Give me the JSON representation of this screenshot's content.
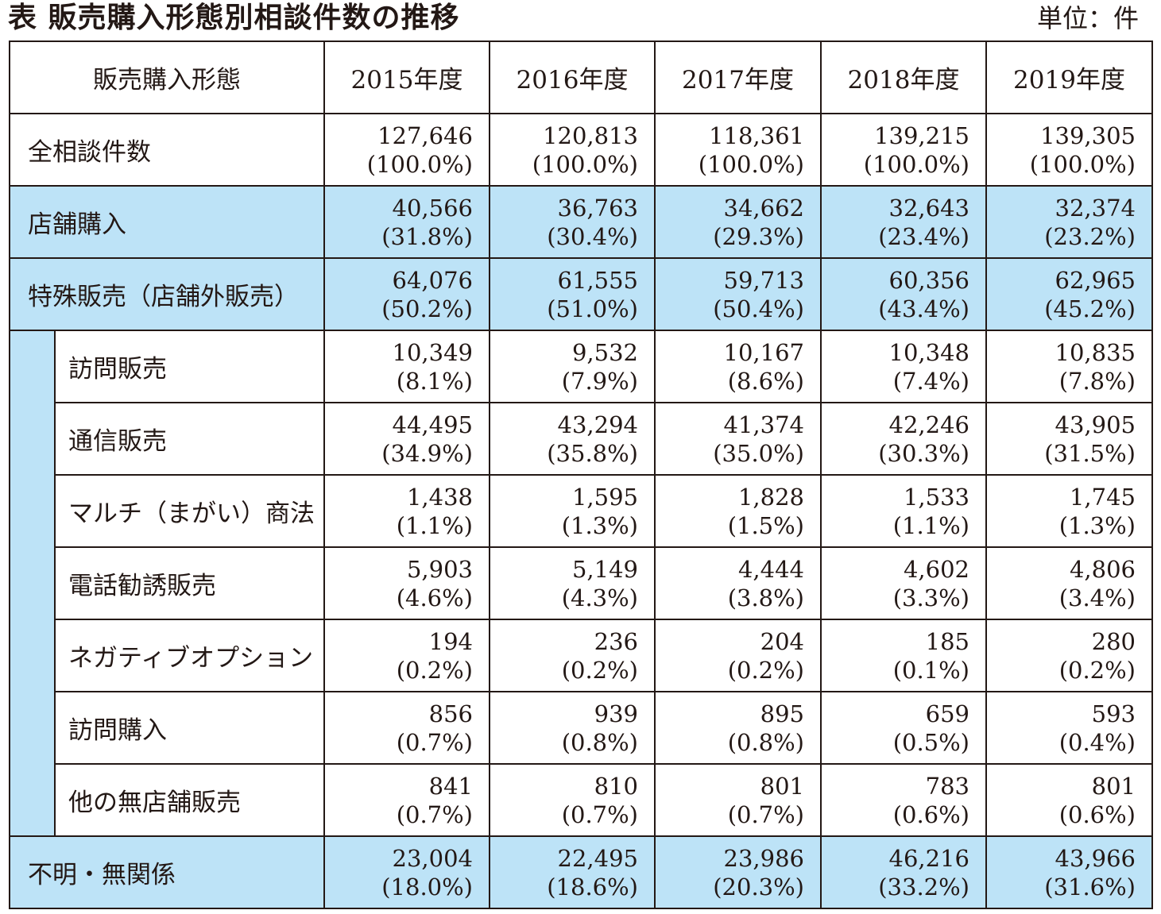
{
  "title": "表 販売購入形態別相談件数の推移",
  "unit": "単位：件",
  "colors": {
    "highlight": "#bde3f7",
    "border": "#231815"
  },
  "table": {
    "header_label": "販売購入形態",
    "years": [
      "2015年度",
      "2016年度",
      "2017年度",
      "2018年度",
      "2019年度"
    ],
    "rows": [
      {
        "label": "全相談件数",
        "level": 0,
        "highlight": false,
        "values": [
          {
            "count": "127,646",
            "pct": "(100.0%)"
          },
          {
            "count": "120,813",
            "pct": "(100.0%)"
          },
          {
            "count": "118,361",
            "pct": "(100.0%)"
          },
          {
            "count": "139,215",
            "pct": "(100.0%)"
          },
          {
            "count": "139,305",
            "pct": "(100.0%)"
          }
        ]
      },
      {
        "label": "店舗購入",
        "level": 0,
        "highlight": true,
        "values": [
          {
            "count": "40,566",
            "pct": "(31.8%)"
          },
          {
            "count": "36,763",
            "pct": "(30.4%)"
          },
          {
            "count": "34,662",
            "pct": "(29.3%)"
          },
          {
            "count": "32,643",
            "pct": "(23.4%)"
          },
          {
            "count": "32,374",
            "pct": "(23.2%)"
          }
        ]
      },
      {
        "label": "特殊販売（店舗外販売）",
        "level": 0,
        "highlight": true,
        "values": [
          {
            "count": "64,076",
            "pct": "(50.2%)"
          },
          {
            "count": "61,555",
            "pct": "(51.0%)"
          },
          {
            "count": "59,713",
            "pct": "(50.4%)"
          },
          {
            "count": "60,356",
            "pct": "(43.4%)"
          },
          {
            "count": "62,965",
            "pct": "(45.2%)"
          }
        ]
      },
      {
        "label": "訪問販売",
        "level": 1,
        "highlight": false,
        "values": [
          {
            "count": "10,349",
            "pct": "(8.1%)"
          },
          {
            "count": "9,532",
            "pct": "(7.9%)"
          },
          {
            "count": "10,167",
            "pct": "(8.6%)"
          },
          {
            "count": "10,348",
            "pct": "(7.4%)"
          },
          {
            "count": "10,835",
            "pct": "(7.8%)"
          }
        ]
      },
      {
        "label": "通信販売",
        "level": 1,
        "highlight": false,
        "values": [
          {
            "count": "44,495",
            "pct": "(34.9%)"
          },
          {
            "count": "43,294",
            "pct": "(35.8%)"
          },
          {
            "count": "41,374",
            "pct": "(35.0%)"
          },
          {
            "count": "42,246",
            "pct": "(30.3%)"
          },
          {
            "count": "43,905",
            "pct": "(31.5%)"
          }
        ]
      },
      {
        "label": "マルチ（まがい）商法",
        "level": 1,
        "highlight": false,
        "values": [
          {
            "count": "1,438",
            "pct": "(1.1%)"
          },
          {
            "count": "1,595",
            "pct": "(1.3%)"
          },
          {
            "count": "1,828",
            "pct": "(1.5%)"
          },
          {
            "count": "1,533",
            "pct": "(1.1%)"
          },
          {
            "count": "1,745",
            "pct": "(1.3%)"
          }
        ]
      },
      {
        "label": "電話勧誘販売",
        "level": 1,
        "highlight": false,
        "values": [
          {
            "count": "5,903",
            "pct": "(4.6%)"
          },
          {
            "count": "5,149",
            "pct": "(4.3%)"
          },
          {
            "count": "4,444",
            "pct": "(3.8%)"
          },
          {
            "count": "4,602",
            "pct": "(3.3%)"
          },
          {
            "count": "4,806",
            "pct": "(3.4%)"
          }
        ]
      },
      {
        "label": "ネガティブオプション",
        "level": 1,
        "highlight": false,
        "values": [
          {
            "count": "194",
            "pct": "(0.2%)"
          },
          {
            "count": "236",
            "pct": "(0.2%)"
          },
          {
            "count": "204",
            "pct": "(0.2%)"
          },
          {
            "count": "185",
            "pct": "(0.1%)"
          },
          {
            "count": "280",
            "pct": "(0.2%)"
          }
        ]
      },
      {
        "label": "訪問購入",
        "level": 1,
        "highlight": false,
        "values": [
          {
            "count": "856",
            "pct": "(0.7%)"
          },
          {
            "count": "939",
            "pct": "(0.8%)"
          },
          {
            "count": "895",
            "pct": "(0.8%)"
          },
          {
            "count": "659",
            "pct": "(0.5%)"
          },
          {
            "count": "593",
            "pct": "(0.4%)"
          }
        ]
      },
      {
        "label": "他の無店舗販売",
        "level": 1,
        "highlight": false,
        "values": [
          {
            "count": "841",
            "pct": "(0.7%)"
          },
          {
            "count": "810",
            "pct": "(0.7%)"
          },
          {
            "count": "801",
            "pct": "(0.7%)"
          },
          {
            "count": "783",
            "pct": "(0.6%)"
          },
          {
            "count": "801",
            "pct": "(0.6%)"
          }
        ]
      },
      {
        "label": "不明・無関係",
        "level": 0,
        "highlight": true,
        "values": [
          {
            "count": "23,004",
            "pct": "(18.0%)"
          },
          {
            "count": "22,495",
            "pct": "(18.6%)"
          },
          {
            "count": "23,986",
            "pct": "(20.3%)"
          },
          {
            "count": "46,216",
            "pct": "(33.2%)"
          },
          {
            "count": "43,966",
            "pct": "(31.6%)"
          }
        ]
      }
    ]
  }
}
